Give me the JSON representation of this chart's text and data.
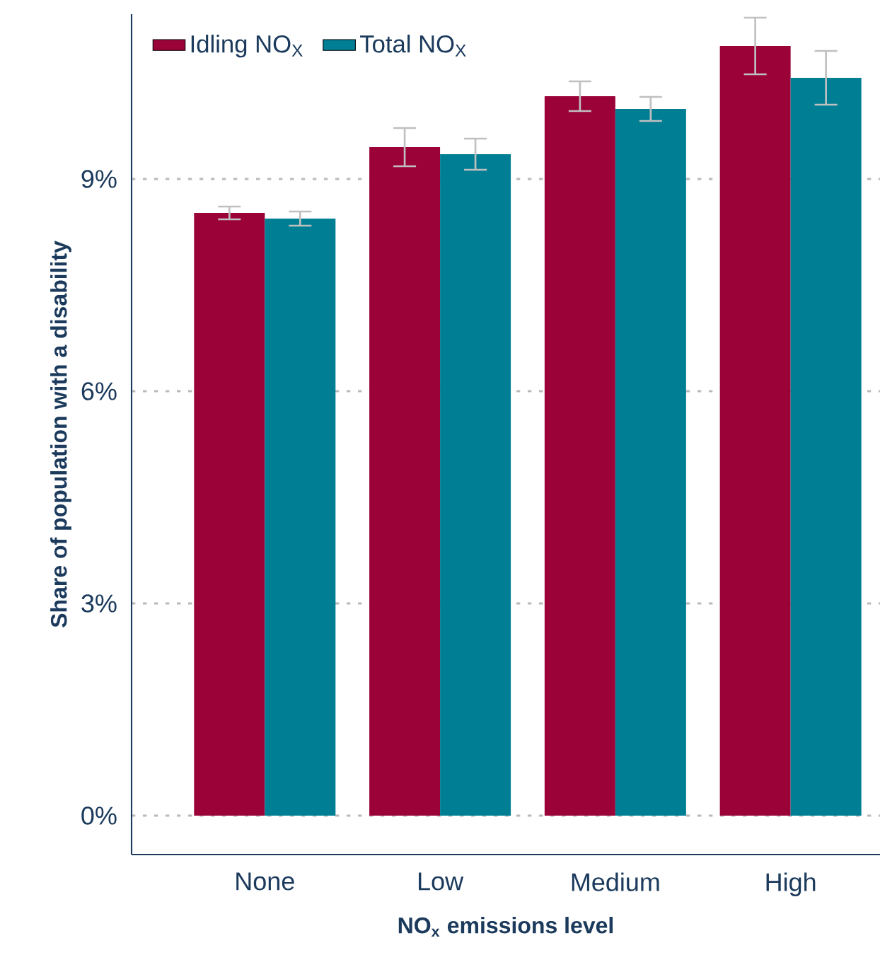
{
  "chart_data": {
    "type": "bar",
    "xlabel": "NO$_{x}$ emissions level",
    "ylabel": "Share of population with a disability",
    "categories": [
      "None",
      "Low",
      "Medium",
      "High"
    ],
    "series": [
      {
        "name": "Idling NO$_{X}$",
        "color": "#9b0338",
        "values": [
          8.52,
          9.45,
          10.17,
          10.88
        ],
        "errors": [
          0.09,
          0.27,
          0.21,
          0.4
        ]
      },
      {
        "name": "Total NO$_{X}$",
        "color": "#007e93",
        "values": [
          8.44,
          9.35,
          9.99,
          10.43
        ],
        "errors": [
          0.1,
          0.22,
          0.17,
          0.38
        ]
      }
    ],
    "ylim": [
      -0.55,
      11.33
    ],
    "yticks": [
      {
        "value": 0,
        "label": "0%"
      },
      {
        "value": 3,
        "label": "3%"
      },
      {
        "value": 6,
        "label": "6%"
      },
      {
        "value": 9,
        "label": "9%"
      }
    ],
    "grid": "y",
    "legend": "top left"
  }
}
